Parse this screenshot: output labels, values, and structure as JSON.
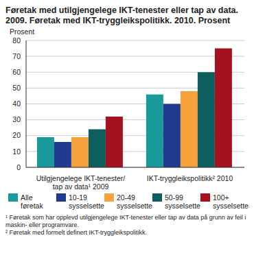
{
  "chart_data": {
    "type": "bar",
    "title": "Føretak med utilgjengelege IKT-tenester eller tap av data. 2009. Føretak med IKT-tryggleikspolitikk. 2010. Prosent",
    "y_label": "Prosent",
    "categories": [
      "Utilgjengelege IKT-tenester/ tap av data¹ 2009",
      "IKT-tryggleikspolitikk² 2010"
    ],
    "series": [
      {
        "name": "Alle føretak",
        "color": "#1b9a9c",
        "values": [
          19,
          46
        ]
      },
      {
        "name": "10-19 sysselsette",
        "color": "#1f3a8f",
        "values": [
          16,
          40
        ]
      },
      {
        "name": "20-49 sysselsette",
        "color": "#f6a23c",
        "values": [
          19,
          48
        ]
      },
      {
        "name": "50-99 sysselsette",
        "color": "#0e5e5e",
        "values": [
          24,
          60
        ]
      },
      {
        "name": "100+ sysselsette",
        "color": "#a3131f",
        "values": [
          32,
          75
        ]
      }
    ],
    "ylim": [
      0,
      80
    ],
    "yticks": [
      0,
      10,
      20,
      30,
      40,
      50,
      60,
      70,
      80
    ],
    "grid": true,
    "footnotes": [
      "¹ Føretak som har opplevd utilgjengelege IKT-tenester eller tap av data på grunn av feil i maskin- eller programvare.",
      "² Føretak med formelt definert IKT-tryggleikspolitikk."
    ]
  }
}
